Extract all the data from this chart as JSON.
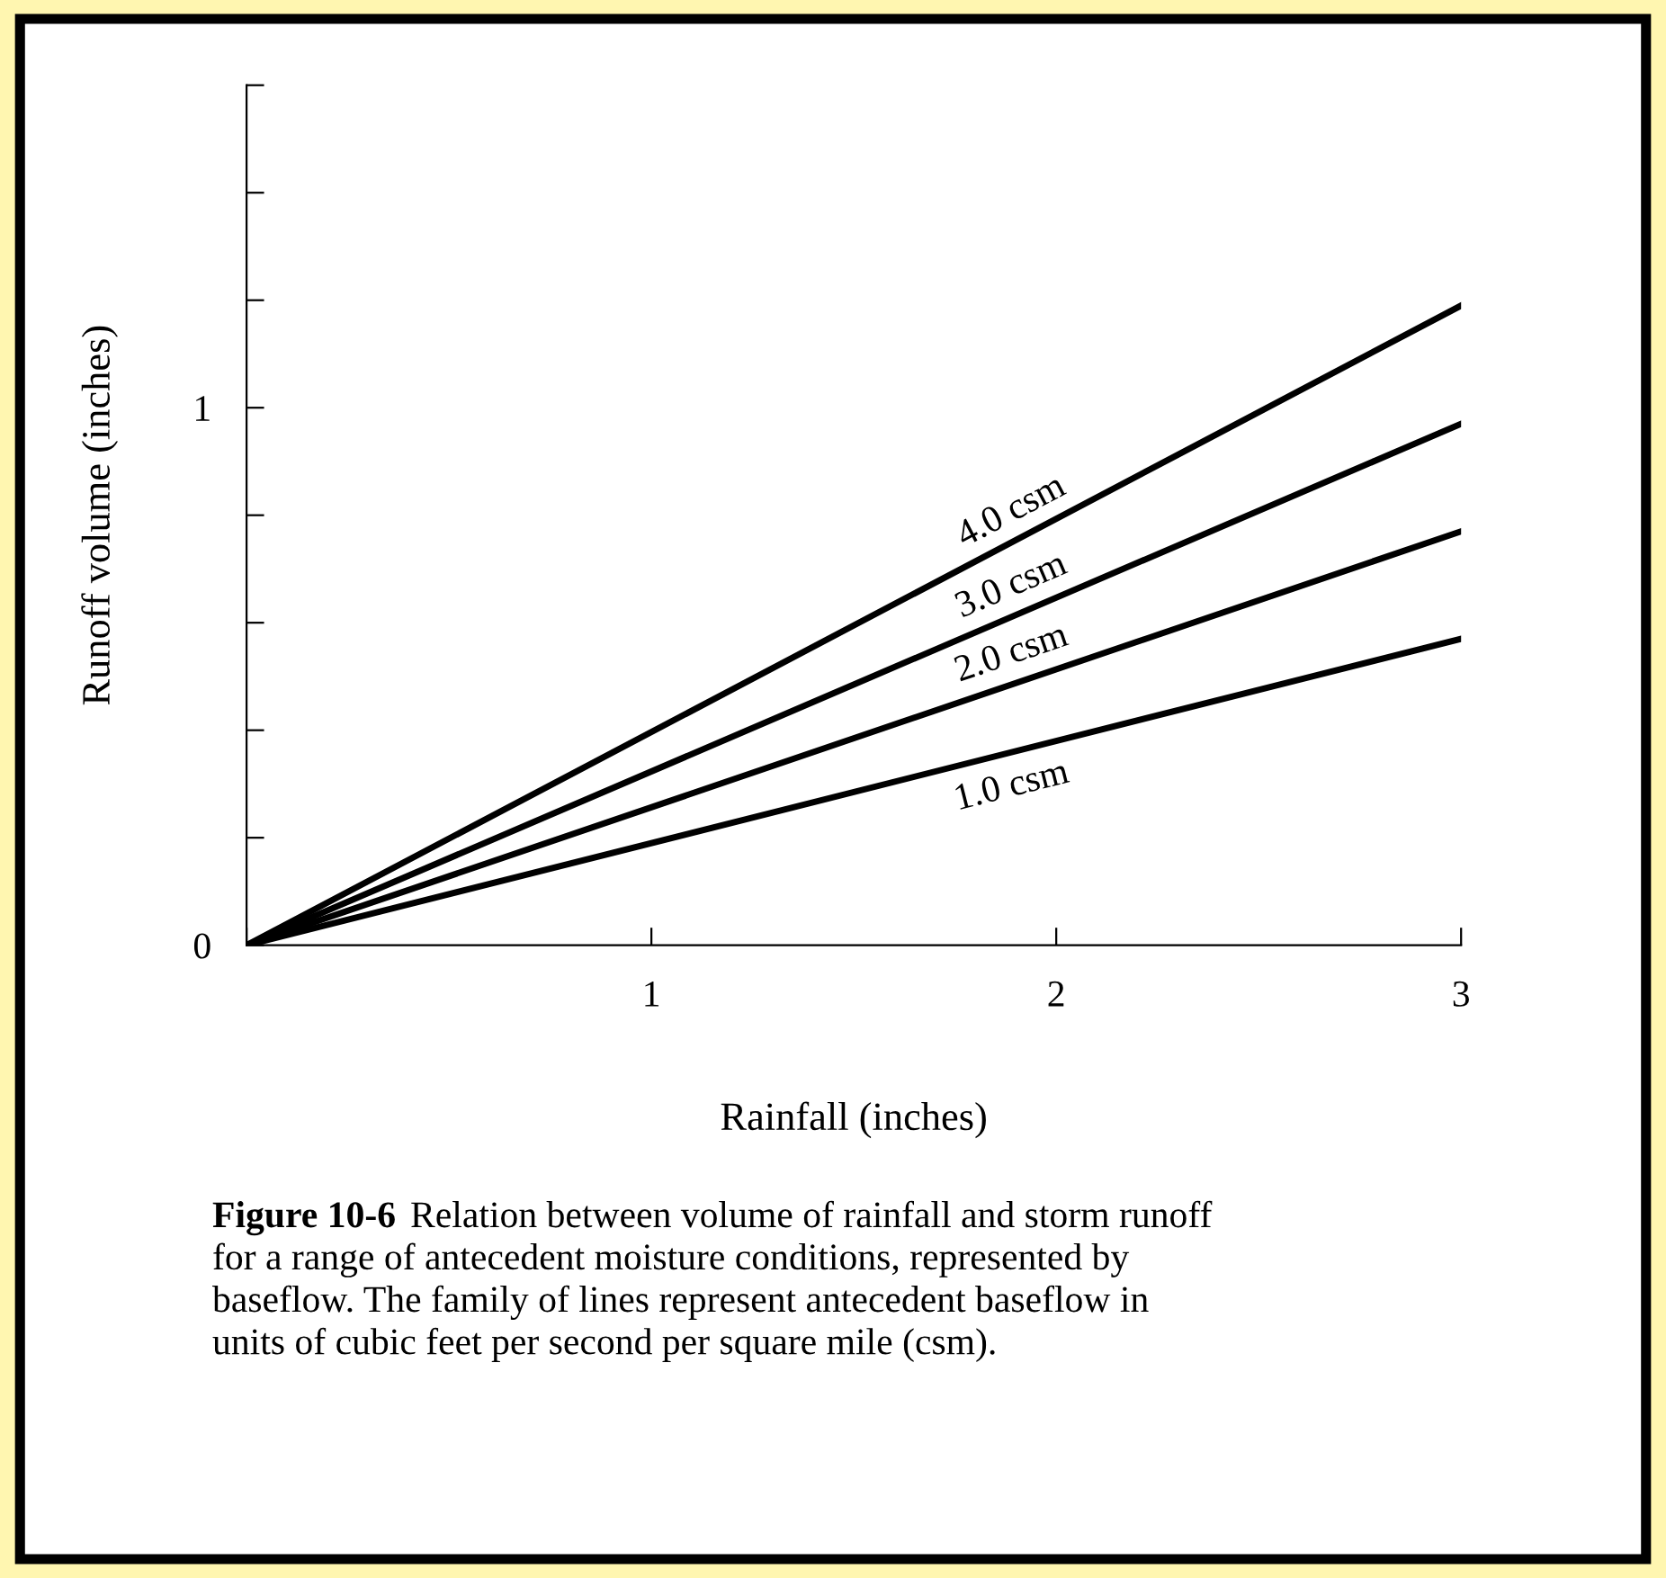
{
  "chart_data": {
    "type": "line",
    "x": [
      0,
      3
    ],
    "xlabel": "Rainfall (inches)",
    "ylabel": "Runoff volume (inches)",
    "series": [
      {
        "name": "4.0 csm",
        "color": "#000000",
        "values": [
          0,
          1.19
        ]
      },
      {
        "name": "3.0 csm",
        "color": "#000000",
        "values": [
          0,
          0.97
        ]
      },
      {
        "name": "2.0 csm",
        "color": "#000000",
        "values": [
          0,
          0.77
        ]
      },
      {
        "name": "1.0 csm",
        "color": "#000000",
        "values": [
          0,
          0.57
        ]
      }
    ],
    "xlim": [
      0,
      3
    ],
    "xticks": [
      {
        "value": 0,
        "label": null
      },
      1,
      2,
      3
    ],
    "ylim": [
      0,
      1.6
    ],
    "yticks": [
      0,
      {
        "value": 0.2,
        "label": null
      },
      {
        "value": 0.4,
        "label": null
      },
      {
        "value": 0.6,
        "label": null
      },
      {
        "value": 0.8,
        "label": null
      },
      1,
      {
        "value": 1.2,
        "label": null
      },
      {
        "value": 1.4,
        "label": null
      },
      {
        "value": 1.6,
        "label": null
      }
    ],
    "grid": false,
    "legend": false,
    "marker": "none",
    "line_style": "solid",
    "annotations": [
      "Figure 10-6",
      "Relation between volume of rainfall and storm runoff",
      "for a range of antecedent moisture conditions, represented by\nbaseflow. The family of lines represent antecedent baseflow in\nunits of cubic feet per second per square mile (csm)."
    ]
  }
}
